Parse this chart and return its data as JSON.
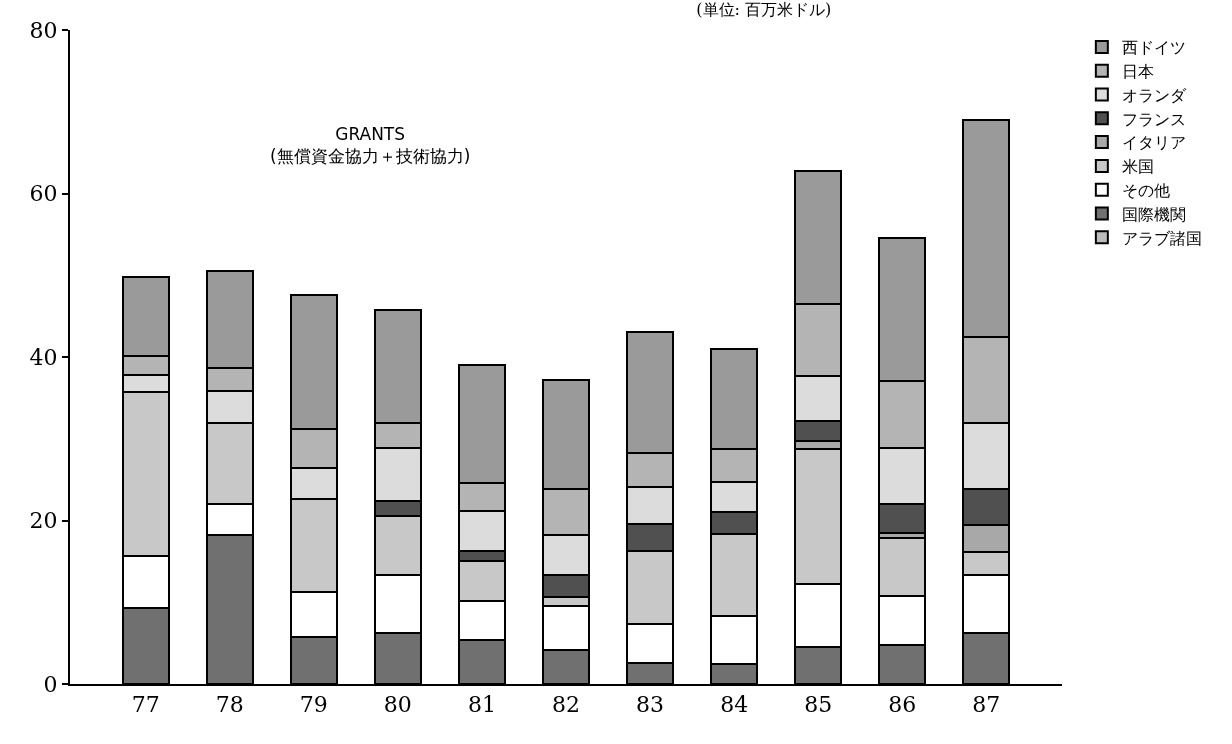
{
  "chart_data": {
    "type": "bar",
    "stacked": true,
    "title": "(単位: 百万米ドル)",
    "annotations": [
      "GRANTS\n(無償資金協力＋技術協力)"
    ],
    "categories": [
      "77",
      "78",
      "79",
      "80",
      "81",
      "82",
      "83",
      "84",
      "85",
      "86",
      "87"
    ],
    "series": [
      {
        "name": "アラブ諸国",
        "color": "#bcbcbc",
        "values": [
          0,
          0,
          0,
          0,
          0,
          0,
          0,
          0,
          0,
          0,
          0
        ]
      },
      {
        "name": "国際機関",
        "color": "#707070",
        "values": [
          9.3,
          18.2,
          5.7,
          6.3,
          5.4,
          4.2,
          2.6,
          2.4,
          4.5,
          4.8,
          6.2
        ]
      },
      {
        "name": "その他",
        "color": "#ffffff",
        "values": [
          6.4,
          3.8,
          5.6,
          7.0,
          4.7,
          5.3,
          4.8,
          5.9,
          7.7,
          6.0,
          7.1
        ]
      },
      {
        "name": "米国",
        "color": "#c8c8c8",
        "values": [
          20.0,
          9.9,
          11.3,
          7.2,
          5.0,
          1.2,
          8.9,
          10.0,
          16.5,
          7.0,
          2.9
        ]
      },
      {
        "name": "イタリア",
        "color": "#a8a8a8",
        "values": [
          0,
          0,
          0,
          0,
          0,
          0,
          0,
          0,
          1.0,
          0.7,
          3.3
        ]
      },
      {
        "name": "フランス",
        "color": "#505050",
        "values": [
          0,
          0,
          0,
          1.9,
          1.2,
          2.6,
          3.3,
          2.7,
          2.5,
          3.5,
          4.4
        ]
      },
      {
        "name": "オランダ",
        "color": "#dcdcdc",
        "values": [
          2.1,
          4.0,
          3.8,
          6.5,
          4.9,
          4.9,
          4.5,
          3.7,
          5.5,
          6.9,
          8.0
        ]
      },
      {
        "name": "日本",
        "color": "#b4b4b4",
        "values": [
          2.3,
          2.7,
          4.8,
          3.0,
          3.4,
          5.6,
          4.2,
          4.0,
          8.8,
          8.2,
          10.5
        ]
      },
      {
        "name": "西ドイツ",
        "color": "#9a9a9a",
        "values": [
          9.7,
          11.9,
          16.4,
          13.9,
          14.4,
          13.4,
          14.7,
          12.3,
          16.3,
          17.4,
          26.6
        ]
      }
    ],
    "ylim": [
      0,
      80
    ],
    "yticks": [
      0,
      20,
      40,
      60,
      80
    ],
    "grid": false,
    "legend": "right"
  }
}
